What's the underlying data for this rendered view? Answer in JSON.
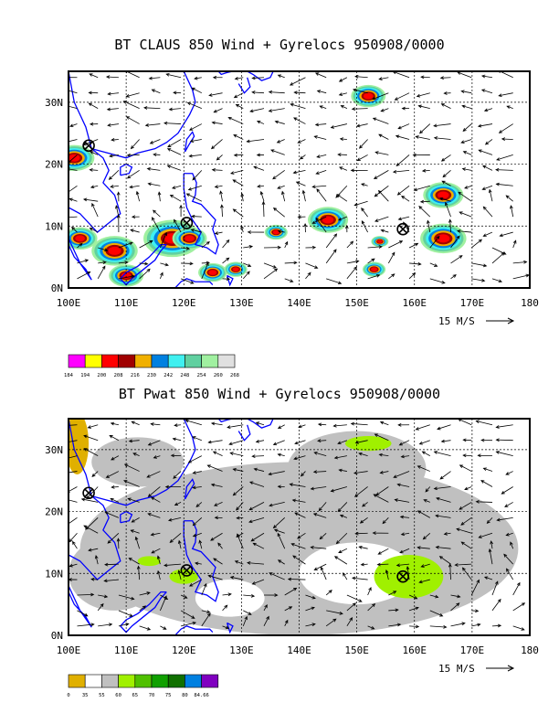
{
  "panels": [
    {
      "title": "BT CLAUS 850 Wind + Gyrelocs 950908/0000",
      "lat_labels": [
        "0N",
        "10N",
        "20N",
        "30N"
      ],
      "lon_labels": [
        "100E",
        "110E",
        "120E",
        "130E",
        "140E",
        "150E",
        "160E",
        "170E",
        "180"
      ],
      "vector_label": "15 M/S",
      "colorbar": {
        "colors": [
          "#ff00ff",
          "#ffff00",
          "#ff0000",
          "#a00000",
          "#f0b000",
          "#0080e0",
          "#40f0f0",
          "#60d0a0",
          "#a0f0a0",
          "#e0e0e0"
        ],
        "labels": [
          "184",
          "194",
          "200",
          "208",
          "216",
          "230",
          "242",
          "248",
          "254",
          "260",
          "268"
        ]
      }
    },
    {
      "title": "BT Pwat 850 Wind + Gyrelocs 950908/0000",
      "lat_labels": [
        "0N",
        "10N",
        "20N",
        "30N"
      ],
      "lon_labels": [
        "100E",
        "110E",
        "120E",
        "130E",
        "140E",
        "150E",
        "160E",
        "170E",
        "180"
      ],
      "vector_label": "15 M/S",
      "colorbar": {
        "colors": [
          "#e0b000",
          "#ffffff",
          "#c0c0c0",
          "#a0f000",
          "#50c000",
          "#10a000",
          "#107000",
          "#0080e0",
          "#8000c0"
        ],
        "labels": [
          "0",
          "35",
          "55",
          "60",
          "65",
          "70",
          "75",
          "80",
          "84.66"
        ]
      }
    }
  ],
  "gyre_locations": [
    {
      "lon": 103.5,
      "lat": 23
    },
    {
      "lon": 120.5,
      "lat": 10.5
    },
    {
      "lon": 158,
      "lat": 9.5
    }
  ],
  "colors": {
    "coast": "#0000ff",
    "frame": "#000000",
    "grid": "#000000"
  }
}
